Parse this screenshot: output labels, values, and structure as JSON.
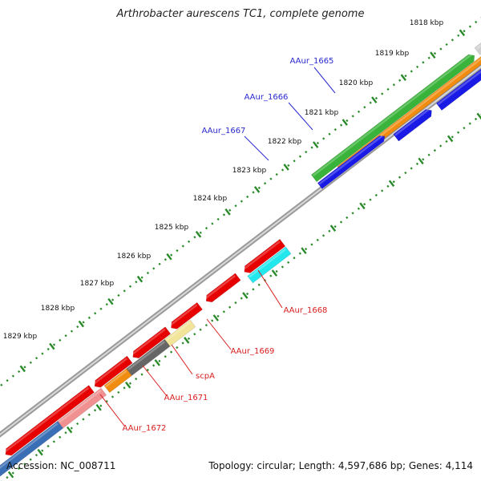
{
  "title": "Arthrobacter aurescens TC1, complete genome",
  "footer": {
    "accession": "Accession: NC_008711",
    "summary": "Topology: circular; Length: 4,597,686 bp; Genes: 4,114"
  },
  "colors": {
    "backbone": "#8c8c8c",
    "tick": "#2a8a2a",
    "forward_label": "#2a2ad0",
    "reverse_label": "#d81e1e"
  },
  "kbp_labels": [
    "1818 kbp",
    "1819 kbp",
    "1820 kbp",
    "1821 kbp",
    "1822 kbp",
    "1823 kbp",
    "1824 kbp",
    "1825 kbp",
    "1826 kbp",
    "1827 kbp",
    "1828 kbp",
    "1829 kbp"
  ],
  "forward_genes": [
    {
      "name": "AAur_1665",
      "label_color": "#2a2ad0"
    },
    {
      "name": "AAur_1666",
      "label_color": "#2a2ad0"
    },
    {
      "name": "AAur_1667",
      "label_color": "#2a2ad0"
    }
  ],
  "reverse_genes": [
    {
      "name": "AAur_1668",
      "label_color": "#d81e1e"
    },
    {
      "name": "AAur_1669",
      "label_color": "#d81e1e"
    },
    {
      "name": "scpA",
      "label_color": "#d81e1e"
    },
    {
      "name": "AAur_1671",
      "label_color": "#d81e1e"
    },
    {
      "name": "AAur_1672",
      "label_color": "#d81e1e"
    }
  ]
}
